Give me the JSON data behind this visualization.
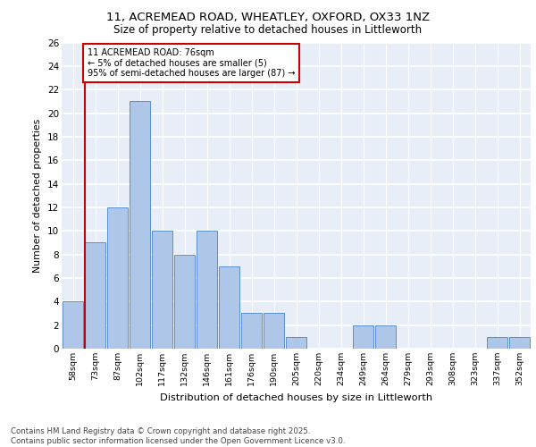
{
  "title1": "11, ACREMEAD ROAD, WHEATLEY, OXFORD, OX33 1NZ",
  "title2": "Size of property relative to detached houses in Littleworth",
  "xlabel": "Distribution of detached houses by size in Littleworth",
  "ylabel": "Number of detached properties",
  "bar_labels": [
    "58sqm",
    "73sqm",
    "87sqm",
    "102sqm",
    "117sqm",
    "132sqm",
    "146sqm",
    "161sqm",
    "176sqm",
    "190sqm",
    "205sqm",
    "220sqm",
    "234sqm",
    "249sqm",
    "264sqm",
    "279sqm",
    "293sqm",
    "308sqm",
    "323sqm",
    "337sqm",
    "352sqm"
  ],
  "bar_values": [
    4,
    9,
    12,
    21,
    10,
    8,
    10,
    7,
    3,
    3,
    1,
    0,
    0,
    2,
    2,
    0,
    0,
    0,
    0,
    1,
    1
  ],
  "bar_color": "#aec6e8",
  "bar_edgecolor": "#5b8fcc",
  "bg_color": "#e8eef8",
  "grid_color": "#ffffff",
  "vline_x": 1,
  "vline_color": "#cc0000",
  "annotation_text": "11 ACREMEAD ROAD: 76sqm\n← 5% of detached houses are smaller (5)\n95% of semi-detached houses are larger (87) →",
  "annotation_box_color": "#cc0000",
  "footer1": "Contains HM Land Registry data © Crown copyright and database right 2025.",
  "footer2": "Contains public sector information licensed under the Open Government Licence v3.0.",
  "ylim": [
    0,
    26
  ],
  "yticks": [
    0,
    2,
    4,
    6,
    8,
    10,
    12,
    14,
    16,
    18,
    20,
    22,
    24,
    26
  ]
}
